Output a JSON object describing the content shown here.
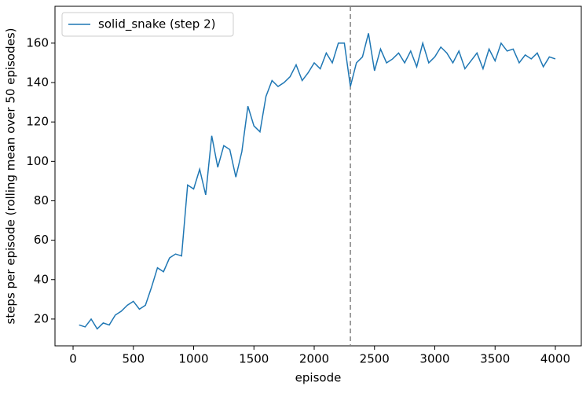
{
  "chart_data": {
    "type": "line",
    "xlabel": "episode",
    "ylabel": "steps per episode (rolling mean over 50 episodes)",
    "x": [
      50,
      100,
      150,
      200,
      250,
      300,
      350,
      400,
      450,
      500,
      550,
      600,
      650,
      700,
      750,
      800,
      850,
      900,
      950,
      1000,
      1050,
      1100,
      1150,
      1200,
      1250,
      1300,
      1350,
      1400,
      1450,
      1500,
      1550,
      1600,
      1650,
      1700,
      1750,
      1800,
      1850,
      1900,
      1950,
      2000,
      2050,
      2100,
      2150,
      2200,
      2250,
      2300,
      2350,
      2400,
      2450,
      2500,
      2550,
      2600,
      2650,
      2700,
      2750,
      2800,
      2850,
      2900,
      2950,
      3000,
      3050,
      3100,
      3150,
      3200,
      3250,
      3300,
      3350,
      3400,
      3450,
      3500,
      3550,
      3600,
      3650,
      3700,
      3750,
      3800,
      3850,
      3900,
      3950,
      4000
    ],
    "series": [
      {
        "name": "solid_snake (step 2)",
        "color": "#1f77b4",
        "values": [
          17,
          16,
          20,
          15,
          18,
          17,
          22,
          24,
          27,
          29,
          25,
          27,
          36,
          46,
          44,
          51,
          53,
          52,
          88,
          86,
          96,
          83,
          113,
          97,
          108,
          106,
          92,
          105,
          128,
          118,
          115,
          133,
          141,
          138,
          140,
          143,
          149,
          141,
          145,
          150,
          147,
          155,
          150,
          160,
          160,
          138,
          150,
          153,
          165,
          146,
          157,
          150,
          152,
          155,
          150,
          156,
          148,
          160,
          150,
          153,
          158,
          155,
          150,
          156,
          147,
          151,
          155,
          147,
          157,
          151,
          160,
          156,
          157,
          150,
          154,
          152,
          155,
          148,
          153,
          152
        ]
      }
    ],
    "vline": {
      "x": 2300,
      "color": "#808080"
    },
    "xlim": [
      -150,
      4215
    ],
    "ylim": [
      6.4,
      178.7
    ],
    "xticks": [
      0,
      500,
      1000,
      1500,
      2000,
      2500,
      3000,
      3500,
      4000
    ],
    "yticks": [
      20,
      40,
      60,
      80,
      100,
      120,
      140,
      160
    ],
    "legend": "upper left"
  }
}
